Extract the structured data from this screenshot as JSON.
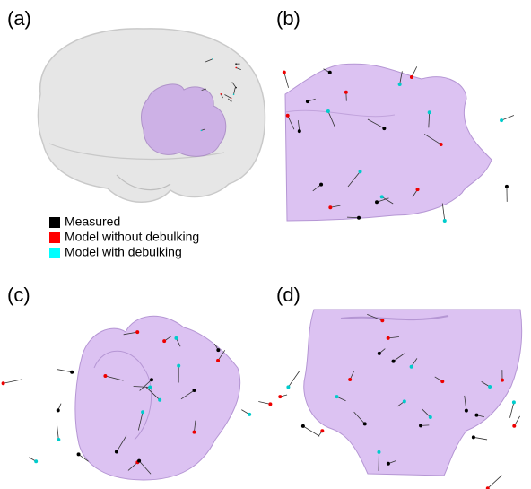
{
  "panels": [
    {
      "label": "(a)"
    },
    {
      "label": "(b)"
    },
    {
      "label": "(c)"
    },
    {
      "label": "(d)"
    }
  ],
  "legend": {
    "items": [
      {
        "label": "Measured",
        "color": "#000000"
      },
      {
        "label": "Model without debulking",
        "color": "#ff0000"
      },
      {
        "label": "Model with debulking",
        "color": "#00ffff"
      }
    ]
  }
}
